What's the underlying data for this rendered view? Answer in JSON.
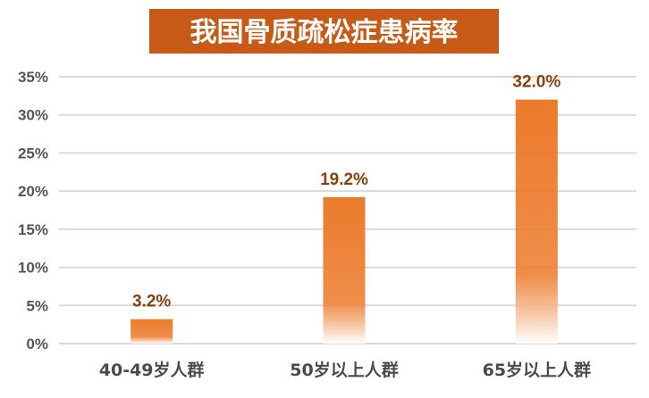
{
  "chart_data": {
    "type": "bar",
    "title": "我国骨质疏松症患病率",
    "categories": [
      "40-49岁人群",
      "50岁以上人群",
      "65岁以上人群"
    ],
    "values": [
      3.2,
      19.2,
      32.0
    ],
    "data_labels": [
      "3.2%",
      "19.2%",
      "32.0%"
    ],
    "ylim": [
      0,
      35
    ],
    "yticks": [
      0,
      5,
      10,
      15,
      20,
      25,
      30,
      35
    ],
    "ytick_labels": [
      "0%",
      "5%",
      "10%",
      "15%",
      "20%",
      "25%",
      "30%",
      "35%"
    ],
    "xlabel": "",
    "ylabel": "",
    "grid": true,
    "legend": "none",
    "colors": {
      "title_background": "#c65a16",
      "bar_top": "#ec7a2b",
      "bar_bottom": "#ffffff",
      "data_label": "#8a3f0e",
      "gridline": "#d9d9d9",
      "tick_label": "#555555"
    }
  }
}
